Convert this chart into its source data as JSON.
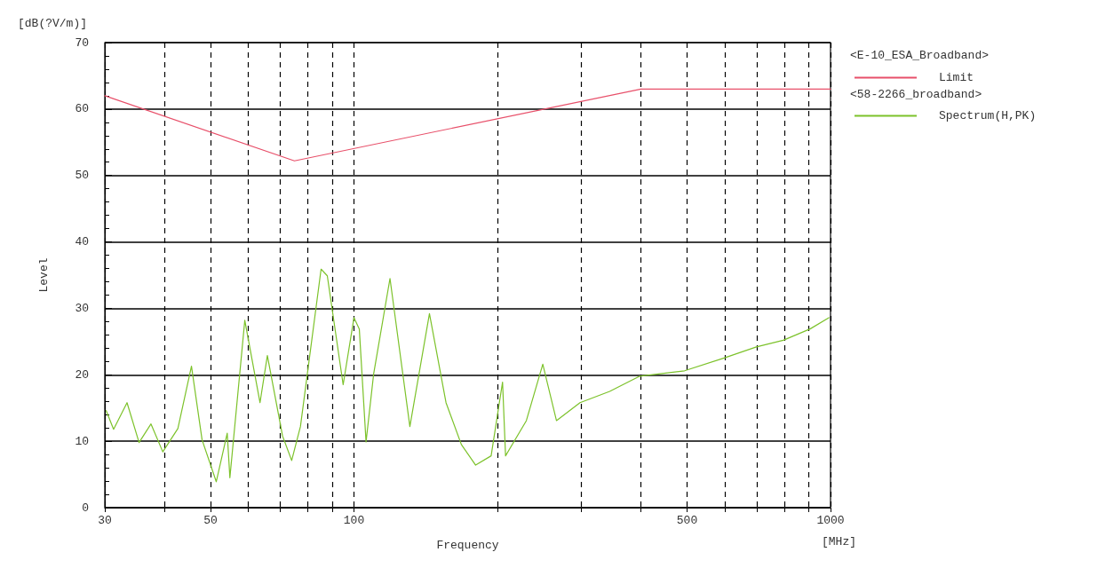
{
  "chart_data": {
    "type": "line",
    "xlabel": "Frequency",
    "ylabel": "Level",
    "annotations": [
      "[dB(?V/m)]",
      "[MHz]",
      "<E-10_ESA_Broadband>",
      "<58-2266_broadband>"
    ],
    "log": "x",
    "grid": true,
    "legend": "top right",
    "marker": "none",
    "line_style": "solid",
    "xlim": [
      30,
      1000
    ],
    "xticks": [
      30,
      {
        "value": 40,
        "label": null
      },
      50,
      {
        "value": 60,
        "label": null
      },
      {
        "value": 70,
        "label": null
      },
      {
        "value": 80,
        "label": null
      },
      {
        "value": 90,
        "label": null
      },
      100,
      {
        "value": 200,
        "label": null
      },
      {
        "value": 300,
        "label": null
      },
      {
        "value": 400,
        "label": null
      },
      500,
      {
        "value": 600,
        "label": null
      },
      {
        "value": 700,
        "label": null
      },
      {
        "value": 800,
        "label": null
      },
      {
        "value": 900,
        "label": null
      },
      1000
    ],
    "ylim": [
      0,
      70
    ],
    "yticks": [
      0,
      10,
      20,
      30,
      40,
      50,
      60,
      70
    ],
    "series": [
      {
        "name": "Limit",
        "color": "#e8506a",
        "x": [
          30,
          75,
          400,
          1000
        ],
        "values": [
          62,
          52.2,
          63,
          63
        ]
      },
      {
        "name": "Spectrum(H,PK)",
        "color": "#7cc22a",
        "x": [
          30.2,
          31.3,
          33.4,
          35.4,
          37.5,
          39.7,
          42.7,
          45.6,
          48,
          51.4,
          54.2,
          54.9,
          59,
          63.5,
          65.8,
          70.8,
          74,
          77.2,
          85.3,
          87.9,
          94.9,
          100,
          102.6,
          106,
          110,
          119,
          131,
          144,
          156,
          168,
          180,
          194,
          205,
          208,
          230,
          249,
          266,
          298,
          344,
          398,
          494,
          596,
          699,
          796,
          906,
          992
        ],
        "values": [
          14.6,
          11.8,
          15.8,
          9.8,
          12.6,
          8.4,
          11.9,
          21.3,
          10.2,
          3.9,
          11.2,
          4.5,
          28.2,
          15.8,
          22.9,
          10.8,
          7.1,
          12.2,
          35.9,
          34.9,
          18.5,
          28.6,
          26.9,
          9.9,
          20.2,
          34.5,
          12.2,
          29.2,
          15.8,
          9.5,
          6.4,
          7.8,
          18.9,
          7.8,
          13.1,
          21.6,
          13.1,
          15.8,
          17.5,
          19.8,
          20.6,
          22.5,
          24.2,
          25.2,
          26.9,
          28.6
        ]
      }
    ]
  }
}
